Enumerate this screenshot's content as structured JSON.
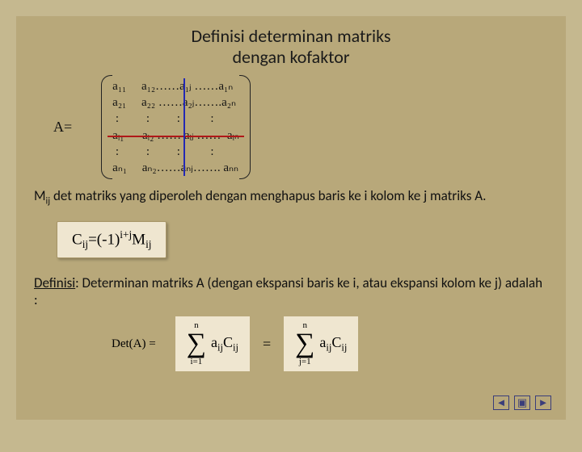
{
  "title_line1": "Definisi  determinan matriks",
  "title_line2": "dengan kofaktor",
  "a_equals": "A=",
  "matrix": {
    "rows": [
      "a₁₁     a₁₂……a₁ⱼ ……a₁ₙ",
      "a₂₁     a₂₂ ……a₂ⱼ…….a₂ₙ",
      " :         :         :          :",
      "aᵢ₁      aᵢ₂ …… aᵢⱼ ……  aᵢₙ",
      " :         :         :          :",
      "aₙ₁     aₙ₂……aₙⱼ……. aₙₙ"
    ],
    "cross": {
      "h_color": "#b01818",
      "v_color": "#2328b4",
      "h_top_pct": 58,
      "v_left_pct": 55
    }
  },
  "mij_text_prefix": "M",
  "mij_sub": "ij",
  "mij_text_rest": " det matriks yang diperoleh dengan menghapus baris ke i kolom ke j matriks A.",
  "cofactor_formula": {
    "lhs": "C",
    "lhs_sub": "ij",
    "eq": "=(-1)",
    "exp": "i+j",
    "rhs": "M",
    "rhs_sub": "ij"
  },
  "def_text": "Definisi: Determinan matriks A (dengan ekspansi baris ke i, atau ekspansi kolom ke j)  adalah :",
  "det_label": "Det(A) =",
  "sums": [
    {
      "top": "n",
      "bottom": "i=1",
      "term_a": "a",
      "term_a_sub": "ij",
      "term_c": "C",
      "term_c_sub": "ij"
    },
    {
      "top": "n",
      "bottom": "j=1",
      "term_a": "a",
      "term_a_sub": "ij",
      "term_c": "C",
      "term_c_sub": "ij"
    }
  ],
  "eq_between": "=",
  "nav": {
    "prev": "◄",
    "home": "▣",
    "next": "►"
  },
  "colors": {
    "page_bg": "#c5b88f",
    "slide_bg": "#b8a87a",
    "box_bg": "#efe6d0",
    "nav_color": "#3a3d7a"
  }
}
